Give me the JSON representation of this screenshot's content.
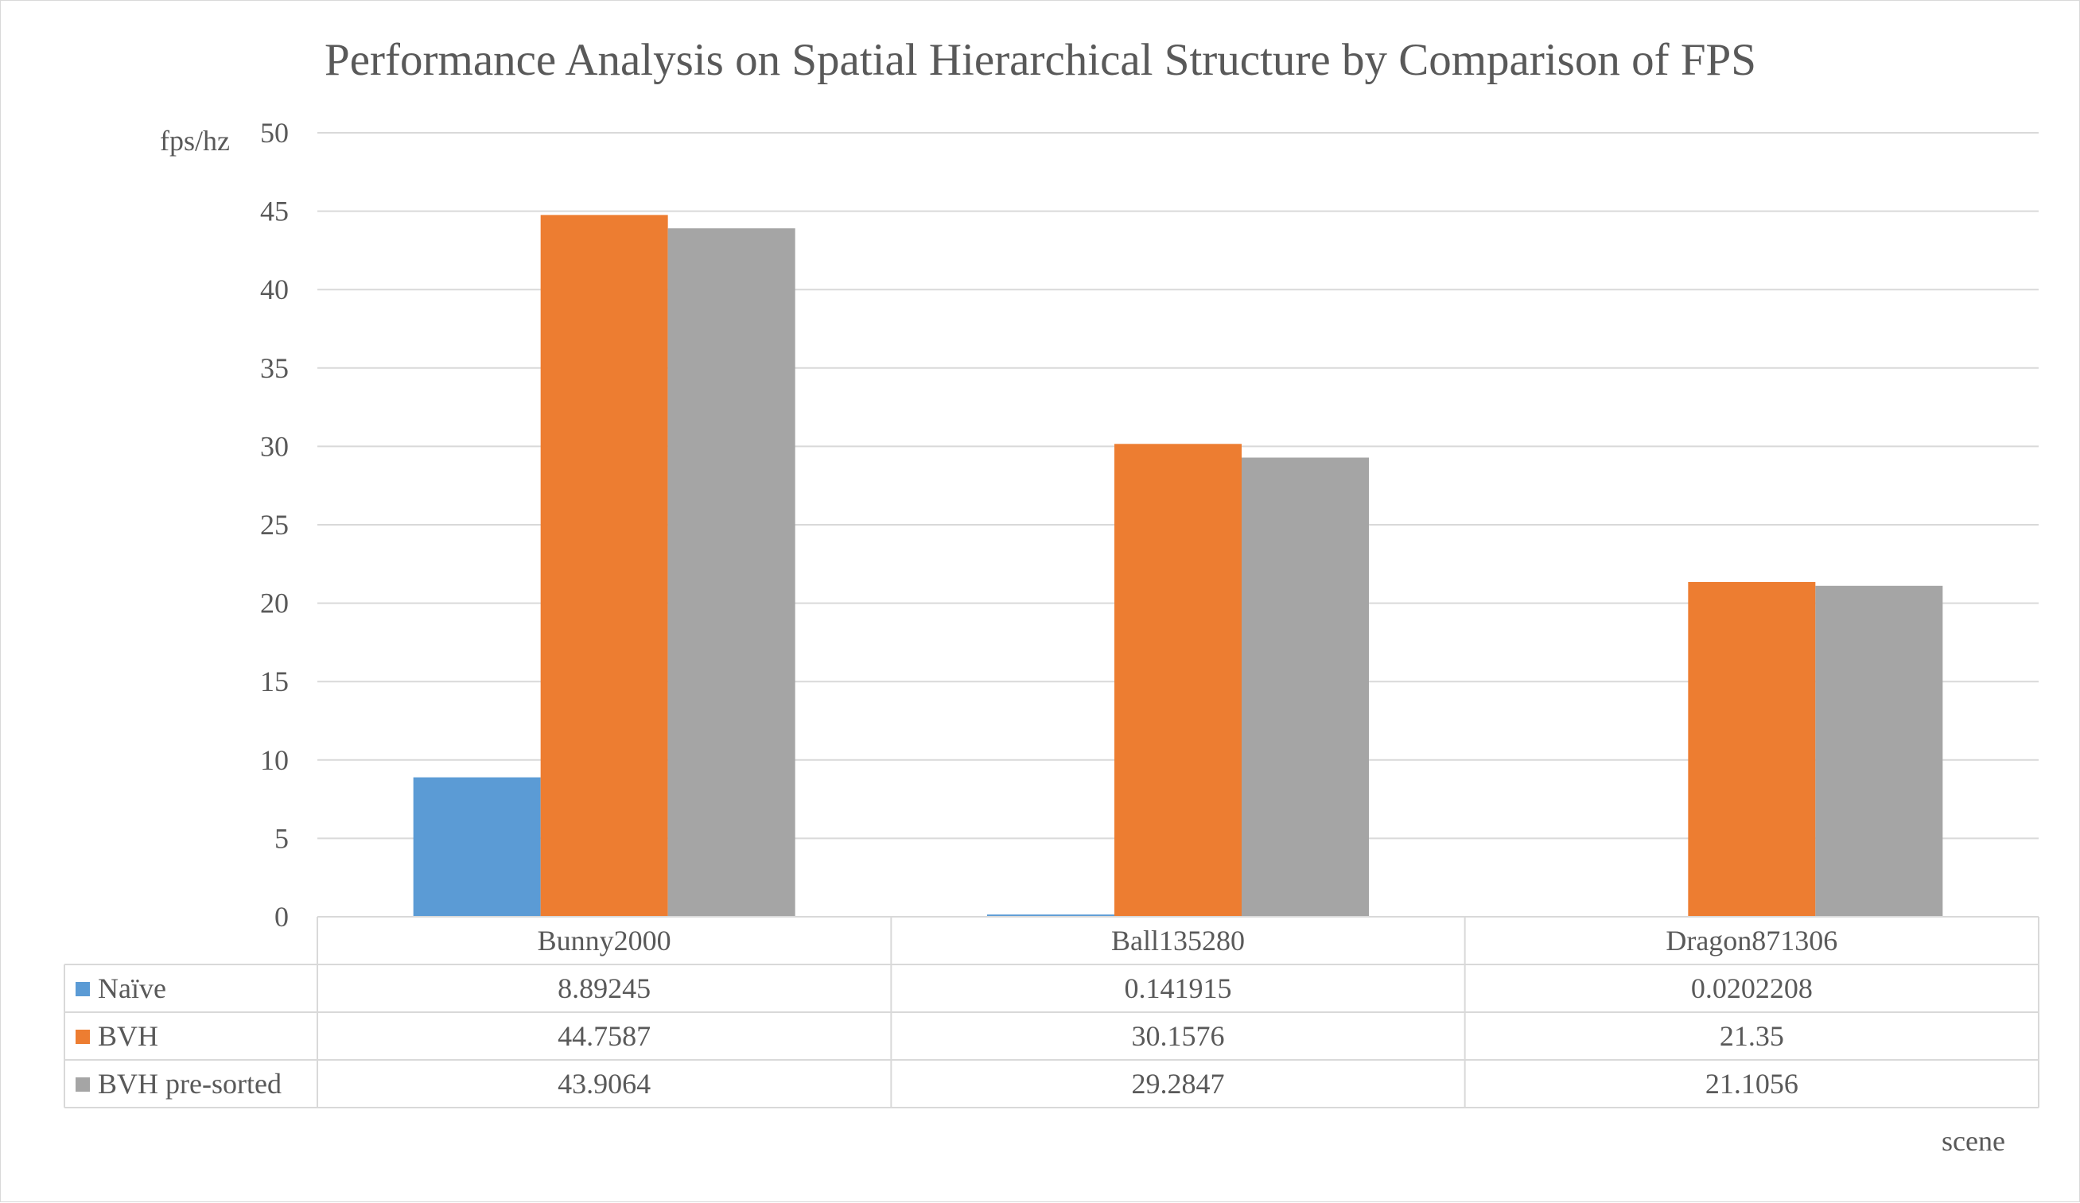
{
  "chart_data": {
    "type": "bar",
    "title": "Performance Analysis on Spatial Hierarchical Structure by Comparison of FPS",
    "xlabel": "scene",
    "ylabel": "fps/hz",
    "ylim": [
      0,
      50
    ],
    "ytick_step": 5,
    "grid": true,
    "legend": "data-table-left",
    "categories": [
      "Bunny2000",
      "Ball135280",
      "Dragon871306"
    ],
    "series": [
      {
        "name": "Naïve",
        "color": "#5b9bd5",
        "values": [
          8.89245,
          0.141915,
          0.0202208
        ],
        "labels": [
          "8.89245",
          "0.141915",
          "0.0202208"
        ]
      },
      {
        "name": "BVH",
        "color": "#ed7d31",
        "values": [
          44.7587,
          30.1576,
          21.35
        ],
        "labels": [
          "44.7587",
          "30.1576",
          "21.35"
        ]
      },
      {
        "name": "BVH pre-sorted",
        "color": "#a5a5a5",
        "values": [
          43.9064,
          29.2847,
          21.1056
        ],
        "labels": [
          "43.9064",
          "29.2847",
          "21.1056"
        ]
      }
    ]
  }
}
